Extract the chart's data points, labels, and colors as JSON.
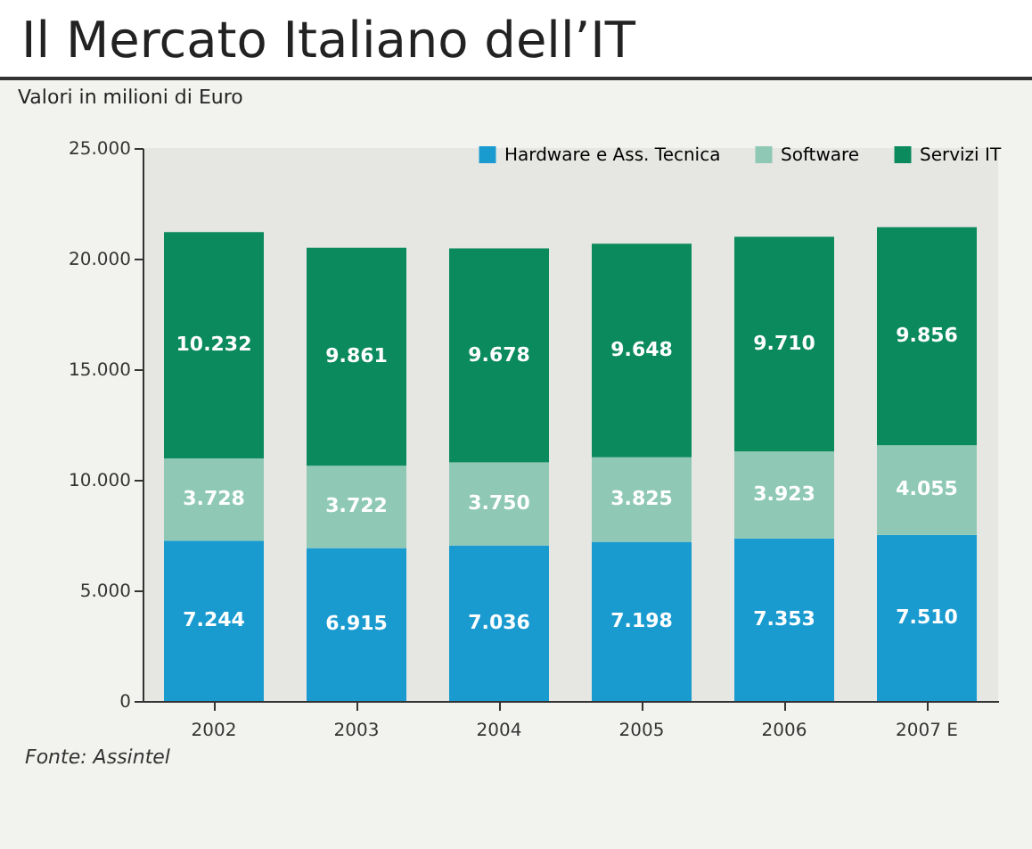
{
  "chart_data": {
    "type": "bar",
    "title": "Il Mercato Italiano dell’IT",
    "subtitle": "Valori in milioni di Euro",
    "categories": [
      "2002",
      "2003",
      "2004",
      "2005",
      "2006",
      "2007 E"
    ],
    "stacked": true,
    "data_labels": true,
    "legend": "top right",
    "ylim": [
      0,
      25000
    ],
    "yticks": [
      {
        "value": 0,
        "label": "0"
      },
      {
        "value": 5000,
        "label": "5.000"
      },
      {
        "value": 10000,
        "label": "10.000"
      },
      {
        "value": 15000,
        "label": "15.000"
      },
      {
        "value": 20000,
        "label": "20.000"
      },
      {
        "value": 25000,
        "label": "25.000"
      }
    ],
    "series": [
      {
        "name": "Hardware e Ass. Tecnica",
        "color": "#1a9bd0",
        "values": [
          7244,
          6915,
          7036,
          7198,
          7353,
          7510
        ],
        "value_labels": [
          "7.244",
          "6.915",
          "7.036",
          "7.198",
          "7.353",
          "7.510"
        ]
      },
      {
        "name": "Software",
        "color": "#8fc9b5",
        "values": [
          3728,
          3722,
          3750,
          3825,
          3923,
          4055
        ],
        "value_labels": [
          "3.728",
          "3.722",
          "3.750",
          "3.825",
          "3.923",
          "4.055"
        ]
      },
      {
        "name": "Servizi IT",
        "color": "#0b8a5e",
        "values": [
          10232,
          9861,
          9678,
          9648,
          9710,
          9856
        ],
        "value_labels": [
          "10.232",
          "9.861",
          "9.678",
          "9.648",
          "9.710",
          "9.856"
        ]
      }
    ],
    "annotations": [
      "Fonte: Assintel"
    ]
  }
}
